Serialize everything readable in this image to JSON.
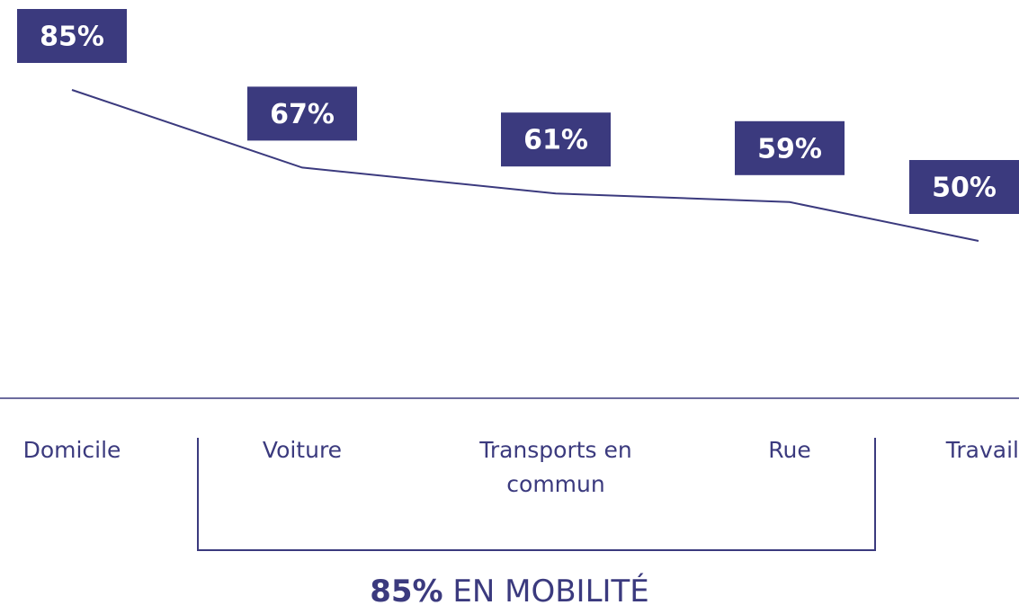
{
  "chart_data": {
    "type": "line",
    "categories": [
      "Domicile",
      "Voiture",
      "Transports en commun",
      "Rue",
      "Travail"
    ],
    "values": [
      85,
      67,
      61,
      59,
      50
    ],
    "value_labels": [
      "85%",
      "67%",
      "61%",
      "59%",
      "50%"
    ],
    "color": "#3b3a7e",
    "annotation": {
      "highlight": "85%",
      "text": "EN MOBILITÉ"
    }
  }
}
